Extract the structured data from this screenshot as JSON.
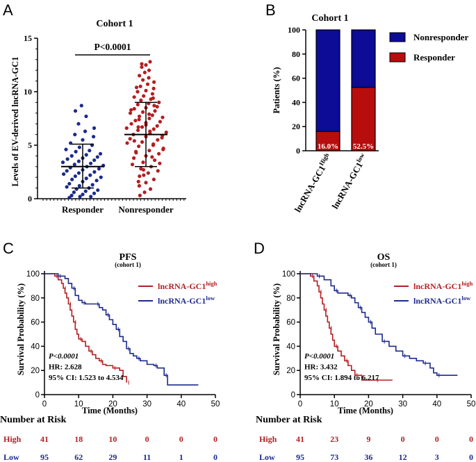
{
  "colors": {
    "red": "#b41e22",
    "blue": "#1c2a8c",
    "bar_red": "#b80d0d",
    "bar_blue": "#0c0c96",
    "black": "#000000"
  },
  "chart_data": [
    {
      "panel": "A",
      "type": "scatter",
      "title": "Cohort 1",
      "xlabel": "",
      "ylabel": "Levels of EV-derived lncRNA-GC1",
      "categories": [
        "Responder",
        "Nonresponder"
      ],
      "ylim": [
        0,
        15
      ],
      "yticks": [
        0,
        5,
        10,
        15
      ],
      "annotation": "P<0.0001",
      "groups": [
        {
          "name": "Responder",
          "color": "#1c2a8c",
          "mean": 3.0,
          "sd_low": 1.0,
          "sd_high": 5.1,
          "values": [
            0.1,
            0.2,
            0.2,
            0.3,
            0.4,
            0.5,
            0.6,
            0.7,
            0.8,
            0.9,
            1.0,
            1.1,
            1.2,
            1.3,
            1.4,
            1.6,
            1.7,
            1.8,
            1.9,
            2.0,
            2.1,
            2.2,
            2.3,
            2.4,
            2.5,
            2.6,
            2.7,
            2.8,
            2.9,
            3.0,
            3.1,
            3.2,
            3.3,
            3.4,
            3.5,
            3.6,
            3.7,
            3.8,
            3.9,
            4.0,
            4.1,
            4.2,
            4.4,
            4.5,
            4.6,
            4.8,
            5.0,
            5.2,
            5.5,
            5.8,
            6.0,
            6.3,
            6.6,
            7.0,
            7.7,
            8.2,
            8.7
          ]
        },
        {
          "name": "Nonresponder",
          "color": "#b41e22",
          "mean": 6.0,
          "sd_low": 3.0,
          "sd_high": 9.0,
          "values": [
            0.3,
            0.6,
            0.9,
            1.2,
            1.5,
            1.8,
            2.1,
            2.4,
            2.6,
            2.8,
            3.0,
            3.2,
            3.4,
            3.6,
            3.8,
            4.0,
            4.2,
            4.4,
            4.5,
            4.7,
            4.9,
            5.0,
            5.2,
            5.3,
            5.5,
            5.6,
            5.8,
            5.9,
            6.0,
            6.1,
            6.2,
            6.4,
            6.5,
            6.6,
            6.7,
            6.8,
            7.0,
            7.1,
            7.2,
            7.3,
            7.5,
            7.6,
            7.7,
            7.8,
            8.0,
            8.1,
            8.2,
            8.4,
            8.5,
            8.6,
            8.8,
            8.9,
            9.0,
            9.2,
            9.3,
            9.5,
            9.6,
            9.8,
            10.0,
            10.1,
            10.3,
            10.5,
            10.7,
            10.9,
            11.1,
            11.3,
            11.5,
            11.8,
            12.0,
            12.3,
            12.5,
            12.8,
            5.4,
            6.3,
            4.6,
            7.4,
            3.9,
            8.3,
            2.7,
            9.4,
            1.6,
            6.9,
            5.7,
            4.3,
            7.9,
            3.3,
            6.7,
            5.1,
            10.4,
            2.2,
            8.7,
            12.6
          ]
        }
      ]
    },
    {
      "panel": "B",
      "type": "bar",
      "title": "Cohort 1",
      "xlabel": "",
      "ylabel": "Patients (%)",
      "categories": [
        "lncRNA-GC1^High",
        "lncRNA-GC1^low"
      ],
      "ylim": [
        0,
        100
      ],
      "yticks": [
        0,
        20,
        40,
        60,
        80,
        100
      ],
      "series": [
        {
          "name": "Responder",
          "color": "#b80d0d",
          "values": [
            16.0,
            52.5
          ]
        },
        {
          "name": "Nonresponder",
          "color": "#0c0c96",
          "values": [
            84.0,
            47.5
          ]
        }
      ],
      "data_labels": [
        "16.0%",
        "52.5%"
      ],
      "legend": "top-right"
    },
    {
      "panel": "C",
      "type": "line",
      "title": "PFS",
      "subtitle": "(cohort 1)",
      "xlabel": "Time (Months)",
      "ylabel": "Survival Probability (%)",
      "xlim": [
        0,
        50
      ],
      "ylim": [
        0,
        100
      ],
      "xticks": [
        0,
        10,
        20,
        30,
        40,
        50
      ],
      "yticks": [
        0,
        20,
        40,
        60,
        80,
        100
      ],
      "legend": "top-right",
      "stats": [
        "P<0.0001",
        "HR: 2.628",
        "95% CI: 1.523 to 4.534"
      ],
      "series": [
        {
          "name": "lncRNA-GC1^high",
          "color": "#b41e22",
          "x": [
            0,
            2,
            3,
            4,
            5,
            5.5,
            6,
            6.5,
            7,
            7.5,
            8,
            8.5,
            9,
            9.5,
            10,
            11,
            12,
            13,
            14,
            15,
            16,
            17,
            18,
            20,
            22,
            23,
            24
          ],
          "y": [
            100,
            100,
            98,
            95,
            92,
            88,
            84,
            80,
            75,
            70,
            65,
            60,
            54,
            50,
            46,
            44,
            40,
            36,
            33,
            30,
            28,
            25,
            24,
            22,
            20,
            15,
            10
          ]
        },
        {
          "name": "lncRNA-GC1^low",
          "color": "#1c2a8c",
          "x": [
            0,
            2,
            4,
            6,
            7,
            8,
            9,
            10,
            11,
            12,
            13,
            15,
            16,
            17,
            18,
            19,
            20,
            21,
            22,
            23,
            24,
            25,
            26,
            27,
            28,
            30,
            32,
            33,
            34,
            35,
            36,
            45
          ],
          "y": [
            100,
            100,
            98,
            96,
            92,
            88,
            82,
            78,
            76,
            75,
            75,
            75,
            72,
            70,
            66,
            62,
            58,
            54,
            48,
            44,
            38,
            34,
            32,
            30,
            28,
            25,
            24,
            22,
            22,
            16,
            8,
            8
          ]
        }
      ],
      "risk_table": {
        "heading": "Number at Risk",
        "times": [
          0,
          10,
          20,
          30,
          40,
          50
        ],
        "rows": [
          {
            "label": "High",
            "values": [
              "41",
              "18",
              "10",
              "0",
              "0",
              "0"
            ]
          },
          {
            "label": "Low",
            "values": [
              "95",
              "62",
              "29",
              "11",
              "1",
              "0"
            ]
          }
        ]
      }
    },
    {
      "panel": "D",
      "type": "line",
      "title": "OS",
      "subtitle": "(cohort 1)",
      "xlabel": "Time (Months)",
      "ylabel": "Survival Probability (%)",
      "xlim": [
        0,
        50
      ],
      "ylim": [
        0,
        100
      ],
      "xticks": [
        0,
        10,
        20,
        30,
        40,
        50
      ],
      "yticks": [
        0,
        20,
        40,
        60,
        80,
        100
      ],
      "legend": "top-right",
      "stats": [
        "P<0.0001",
        "HR: 3.432",
        "95% CI: 1.894 to 6.217"
      ],
      "series": [
        {
          "name": "lncRNA-GC1^high",
          "color": "#b41e22",
          "x": [
            0,
            2,
            3,
            4,
            5,
            5.5,
            6,
            6.5,
            7,
            7.5,
            8,
            8.5,
            9,
            9.5,
            10,
            11,
            12,
            13,
            14,
            15,
            16,
            18,
            20,
            22,
            27
          ],
          "y": [
            100,
            100,
            98,
            94,
            90,
            85,
            80,
            75,
            70,
            65,
            60,
            55,
            50,
            45,
            40,
            36,
            32,
            28,
            24,
            20,
            16,
            12,
            12,
            12,
            12
          ]
        },
        {
          "name": "lncRNA-GC1^low",
          "color": "#1c2a8c",
          "x": [
            0,
            3,
            5,
            7,
            9,
            10,
            11,
            12,
            14,
            15,
            16,
            17,
            18,
            19,
            20,
            21,
            22,
            24,
            26,
            28,
            30,
            32,
            34,
            36,
            38,
            39,
            40,
            46
          ],
          "y": [
            100,
            100,
            98,
            95,
            90,
            86,
            84,
            84,
            82,
            80,
            76,
            72,
            68,
            64,
            60,
            55,
            50,
            44,
            40,
            36,
            32,
            30,
            28,
            26,
            22,
            18,
            16,
            16
          ]
        }
      ],
      "risk_table": {
        "heading": "Number at Risk",
        "times": [
          0,
          10,
          20,
          30,
          40,
          50
        ],
        "rows": [
          {
            "label": "High",
            "values": [
              "41",
              "23",
              "9",
              "0",
              "0",
              "0"
            ]
          },
          {
            "label": "Low",
            "values": [
              "95",
              "73",
              "36",
              "12",
              "3",
              "0"
            ]
          }
        ]
      }
    }
  ],
  "panel_labels": [
    "A",
    "B",
    "C",
    "D"
  ]
}
